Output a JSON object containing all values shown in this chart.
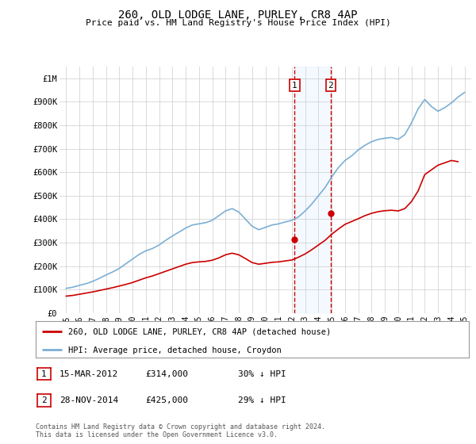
{
  "title": "260, OLD LODGE LANE, PURLEY, CR8 4AP",
  "subtitle": "Price paid vs. HM Land Registry's House Price Index (HPI)",
  "legend_line1": "260, OLD LODGE LANE, PURLEY, CR8 4AP (detached house)",
  "legend_line2": "HPI: Average price, detached house, Croydon",
  "footnote": "Contains HM Land Registry data © Crown copyright and database right 2024.\nThis data is licensed under the Open Government Licence v3.0.",
  "sale1_date": "15-MAR-2012",
  "sale1_price": "£314,000",
  "sale1_hpi": "30% ↓ HPI",
  "sale1_year": 2012.21,
  "sale1_value": 314000,
  "sale2_date": "28-NOV-2014",
  "sale2_price": "£425,000",
  "sale2_hpi": "29% ↓ HPI",
  "sale2_year": 2014.91,
  "sale2_value": 425000,
  "hpi_color": "#7bafd4",
  "price_color": "#cc0000",
  "shade_color": "#ddeeff",
  "marker_box_color": "#cc0000",
  "ylim": [
    0,
    1050000
  ],
  "xlim": [
    1994.5,
    2025.5
  ],
  "yticks": [
    0,
    100000,
    200000,
    300000,
    400000,
    500000,
    600000,
    700000,
    800000,
    900000,
    1000000
  ],
  "ytick_labels": [
    "£0",
    "£100K",
    "£200K",
    "£300K",
    "£400K",
    "£500K",
    "£600K",
    "£700K",
    "£800K",
    "£900K",
    "£1M"
  ],
  "xticks": [
    1995,
    1996,
    1997,
    1998,
    1999,
    2000,
    2001,
    2002,
    2003,
    2004,
    2005,
    2006,
    2007,
    2008,
    2009,
    2010,
    2011,
    2012,
    2013,
    2014,
    2015,
    2016,
    2017,
    2018,
    2019,
    2020,
    2021,
    2022,
    2023,
    2024,
    2025
  ],
  "hpi_years": [
    1995.0,
    1995.5,
    1996.0,
    1996.5,
    1997.0,
    1997.5,
    1998.0,
    1998.5,
    1999.0,
    1999.5,
    2000.0,
    2000.5,
    2001.0,
    2001.5,
    2002.0,
    2002.5,
    2003.0,
    2003.5,
    2004.0,
    2004.5,
    2005.0,
    2005.5,
    2006.0,
    2006.5,
    2007.0,
    2007.5,
    2008.0,
    2008.5,
    2009.0,
    2009.5,
    2010.0,
    2010.5,
    2011.0,
    2011.5,
    2012.0,
    2012.5,
    2013.0,
    2013.5,
    2014.0,
    2014.5,
    2015.0,
    2015.5,
    2016.0,
    2016.5,
    2017.0,
    2017.5,
    2018.0,
    2018.5,
    2019.0,
    2019.5,
    2020.0,
    2020.5,
    2021.0,
    2021.5,
    2022.0,
    2022.5,
    2023.0,
    2023.5,
    2024.0,
    2024.5,
    2025.0
  ],
  "hpi_values": [
    105000,
    110000,
    118000,
    125000,
    135000,
    148000,
    162000,
    175000,
    190000,
    210000,
    230000,
    250000,
    265000,
    275000,
    290000,
    310000,
    328000,
    345000,
    362000,
    375000,
    380000,
    385000,
    395000,
    415000,
    435000,
    445000,
    430000,
    400000,
    370000,
    355000,
    365000,
    375000,
    380000,
    388000,
    395000,
    410000,
    435000,
    465000,
    500000,
    535000,
    580000,
    620000,
    650000,
    670000,
    695000,
    715000,
    730000,
    740000,
    745000,
    748000,
    740000,
    760000,
    810000,
    870000,
    910000,
    880000,
    860000,
    875000,
    895000,
    920000,
    940000
  ],
  "price_years": [
    1995.0,
    1995.5,
    1996.0,
    1996.5,
    1997.0,
    1997.5,
    1998.0,
    1998.5,
    1999.0,
    1999.5,
    2000.0,
    2000.5,
    2001.0,
    2001.5,
    2002.0,
    2002.5,
    2003.0,
    2003.5,
    2004.0,
    2004.5,
    2005.0,
    2005.5,
    2006.0,
    2006.5,
    2007.0,
    2007.5,
    2008.0,
    2008.5,
    2009.0,
    2009.5,
    2010.0,
    2010.5,
    2011.0,
    2011.5,
    2012.0,
    2012.5,
    2013.0,
    2013.5,
    2014.0,
    2014.5,
    2015.0,
    2015.5,
    2016.0,
    2016.5,
    2017.0,
    2017.5,
    2018.0,
    2018.5,
    2019.0,
    2019.5,
    2020.0,
    2020.5,
    2021.0,
    2021.5,
    2022.0,
    2022.5,
    2023.0,
    2023.5,
    2024.0,
    2024.5
  ],
  "price_values": [
    72000,
    75000,
    80000,
    85000,
    90000,
    96000,
    102000,
    108000,
    115000,
    122000,
    130000,
    140000,
    150000,
    158000,
    168000,
    178000,
    188000,
    198000,
    208000,
    215000,
    218000,
    220000,
    225000,
    235000,
    248000,
    255000,
    248000,
    232000,
    215000,
    208000,
    212000,
    216000,
    218000,
    222000,
    226000,
    238000,
    252000,
    270000,
    290000,
    310000,
    336000,
    358000,
    378000,
    390000,
    402000,
    415000,
    425000,
    432000,
    436000,
    438000,
    435000,
    445000,
    475000,
    520000,
    590000,
    610000,
    630000,
    640000,
    650000,
    645000
  ],
  "bg_color": "#ffffff",
  "grid_color": "#cccccc"
}
